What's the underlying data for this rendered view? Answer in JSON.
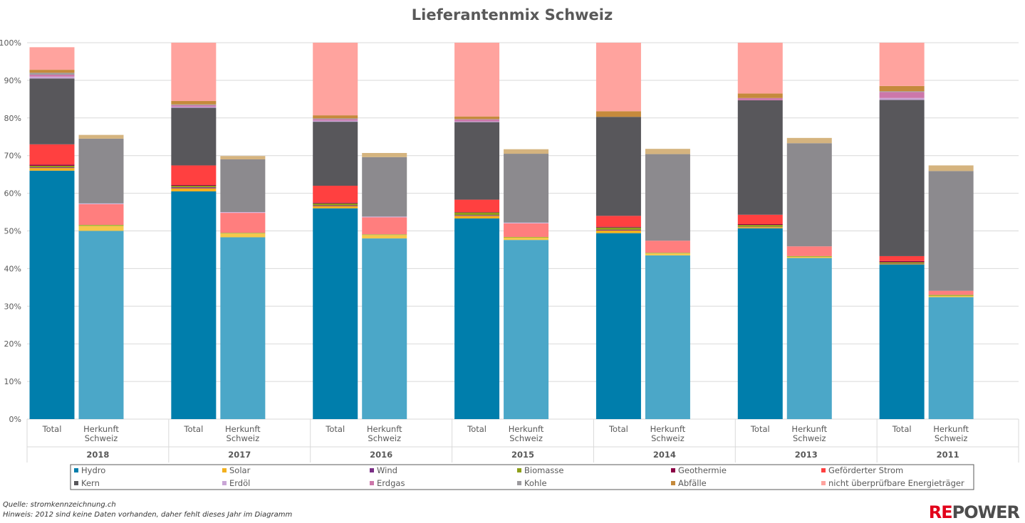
{
  "chart_data": {
    "type": "bar",
    "stacked": true,
    "title": "Lieferantenmix Schweiz",
    "yticks": [
      "0%",
      "10%",
      "20%",
      "30%",
      "40%",
      "50%",
      "60%",
      "70%",
      "80%",
      "90%",
      "100%"
    ],
    "ylim": [
      0,
      100
    ],
    "grid": true,
    "legend_position": "bottom",
    "groups": [
      {
        "year": "2018",
        "bars": [
          {
            "label": "Total",
            "values": [
              66,
              0.7,
              0.2,
              0.4,
              0.3,
              5.4,
              17.5,
              0.5,
              0.5,
              0.5,
              0.8,
              6.0
            ]
          },
          {
            "label": "Herkunft Schweiz",
            "values": [
              50,
              1.3,
              0,
              0.3,
              0,
              5.5,
              0,
              0.2,
              0,
              17.2,
              1.0,
              0
            ]
          }
        ]
      },
      {
        "year": "2017",
        "bars": [
          {
            "label": "Total",
            "values": [
              60.5,
              0.8,
              0.3,
              0.4,
              0.2,
              5.2,
              15.3,
              0.3,
              0.4,
              0.2,
              0.9,
              15.5
            ]
          },
          {
            "label": "Herkunft Schweiz",
            "values": [
              48.3,
              1.0,
              0,
              0.2,
              0,
              5.3,
              0,
              0.2,
              0,
              14.0,
              0.9,
              0
            ]
          }
        ]
      },
      {
        "year": "2016",
        "bars": [
          {
            "label": "Total",
            "values": [
              56,
              0.6,
              0.2,
              0.5,
              0.2,
              4.5,
              17,
              0.3,
              0.4,
              0.2,
              0.8,
              19.3
            ]
          },
          {
            "label": "Herkunft Schweiz",
            "values": [
              48.0,
              0.9,
              0,
              0.2,
              0,
              4.5,
              0,
              0.2,
              0,
              15.8,
              1.1,
              0
            ]
          }
        ]
      },
      {
        "year": "2015",
        "bars": [
          {
            "label": "Total",
            "values": [
              53.3,
              0.7,
              0.2,
              0.7,
              0.1,
              3.3,
              20.6,
              0.2,
              0.5,
              0.1,
              0.7,
              19.6
            ]
          },
          {
            "label": "Herkunft Schweiz",
            "values": [
              47.6,
              0.6,
              0,
              0.2,
              0,
              3.6,
              0,
              0.2,
              0,
              18.3,
              1.2,
              0
            ]
          }
        ]
      },
      {
        "year": "2014",
        "bars": [
          {
            "label": "Total",
            "values": [
              49.4,
              0.7,
              0.2,
              0.6,
              0.2,
              2.9,
              26.3,
              0,
              0,
              0,
              1.5,
              18.2
            ]
          },
          {
            "label": "Herkunft Schweiz",
            "values": [
              43.5,
              0.5,
              0,
              0.2,
              0,
              3.2,
              0,
              0,
              0,
              23,
              1.4,
              0
            ]
          }
        ]
      },
      {
        "year": "2013",
        "bars": [
          {
            "label": "Total",
            "values": [
              50.7,
              0.3,
              0.1,
              0.5,
              0.2,
              2.5,
              30.4,
              0,
              0.6,
              0,
              1.2,
              13.5
            ]
          },
          {
            "label": "Herkunft Schweiz",
            "values": [
              42.8,
              0.3,
              0,
              0.2,
              0,
              2.6,
              0,
              0,
              0,
              27.4,
              1.4,
              0
            ]
          }
        ]
      },
      {
        "year": "2011",
        "bars": [
          {
            "label": "Total",
            "values": [
              41.1,
              0.2,
              0.1,
              0.3,
              0.3,
              1.3,
              41.5,
              0.5,
              1.6,
              0.2,
              1.4,
              11.5
            ]
          },
          {
            "label": "Herkunft Schweiz",
            "values": [
              32.4,
              0.3,
              0,
              0.3,
              0,
              1.1,
              0,
              0,
              0,
              31.8,
              1.5,
              0
            ]
          }
        ]
      }
    ],
    "series": [
      {
        "name": "Hydro",
        "color_total": "#007EAC",
        "color_ch": "#4BA7C8"
      },
      {
        "name": "Solar",
        "color_total": "#F2B01E",
        "color_ch": "#F6C84A"
      },
      {
        "name": "Wind",
        "color_total": "#7A2F85",
        "color_ch": "#8E4598"
      },
      {
        "name": "Biomasse",
        "color_total": "#8E9F1A",
        "color_ch": "#A5B43A"
      },
      {
        "name": "Geothermie",
        "color_total": "#8B0045",
        "color_ch": "#A0205A"
      },
      {
        "name": "Geförderter Strom",
        "color_total": "#FF4040",
        "color_ch": "#FF7E7E"
      },
      {
        "name": "Kern",
        "color_total": "#58575B",
        "color_ch": "#707073"
      },
      {
        "name": "Erdöl",
        "color_total": "#C9A6D6",
        "color_ch": "#D5B6E0"
      },
      {
        "name": "Erdgas",
        "color_total": "#CC77AA",
        "color_ch": "#D88EBA"
      },
      {
        "name": "Kohle",
        "color_total": "#9C9A9E",
        "color_ch": "#8C8A8E"
      },
      {
        "name": "Abfälle",
        "color_total": "#C58A3C",
        "color_ch": "#D5B47F"
      },
      {
        "name": "nicht überprüfbare Energieträger",
        "color_total": "#FFA39E",
        "color_ch": "#FFB3AF"
      }
    ]
  },
  "legend_marker_colors": [
    "#007EAC",
    "#F2B01E",
    "#7A2F85",
    "#8E9F1A",
    "#8B0045",
    "#FF4040",
    "#58575B",
    "#C9A6D6",
    "#CC77AA",
    "#9C9A9E",
    "#C58A3C",
    "#FFA39E"
  ],
  "notes": {
    "source": "Quelle: stromkennzeichnung.ch",
    "hint": "Hinweis: 2012 sind keine Daten vorhanden, daher fehlt dieses Jahr im Diagramm"
  },
  "logo": {
    "text_a": "RE",
    "text_b": "POWER",
    "color_a": "#E2001A",
    "color_b": "#4D4D4D"
  }
}
